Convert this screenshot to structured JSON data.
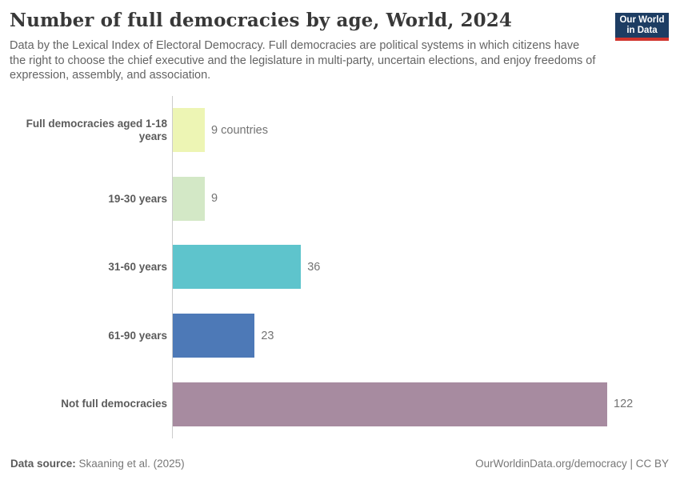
{
  "header": {
    "title": "Number of full democracies by age, World, 2024",
    "subtitle": "Data by the Lexical Index of Electoral Democracy. Full democracies are political systems in which citizens have the right to choose the chief executive and the legislature in multi-party, uncertain elections, and enjoy freedoms of expression, assembly, and association.",
    "logo": {
      "line1": "Our World",
      "line2": "in Data",
      "bg": "#1d3d63",
      "accent": "#d0342c"
    }
  },
  "chart_data": {
    "type": "bar",
    "orientation": "horizontal",
    "title": "Number of full democracies by age, World, 2024",
    "categories": [
      "Full democracies aged 1-18 years",
      "19-30 years",
      "31-60 years",
      "61-90 years",
      "Not full democracies"
    ],
    "values": [
      9,
      9,
      36,
      23,
      122
    ],
    "value_labels": [
      "9 countries",
      "9",
      "36",
      "23",
      "122"
    ],
    "bar_colors": [
      "#edf5b4",
      "#d3e8c6",
      "#5ec4cc",
      "#4d79b7",
      "#a78ba0"
    ],
    "xlim": [
      0,
      122
    ],
    "grid": false,
    "axis_line_color": "#cccccc",
    "category_label_color": "#5b5b5b",
    "value_label_color": "#737373"
  },
  "footer": {
    "source_label": "Data source:",
    "source_value": "Skaaning et al. (2025)",
    "right_text": "OurWorldinData.org/democracy | CC BY"
  }
}
